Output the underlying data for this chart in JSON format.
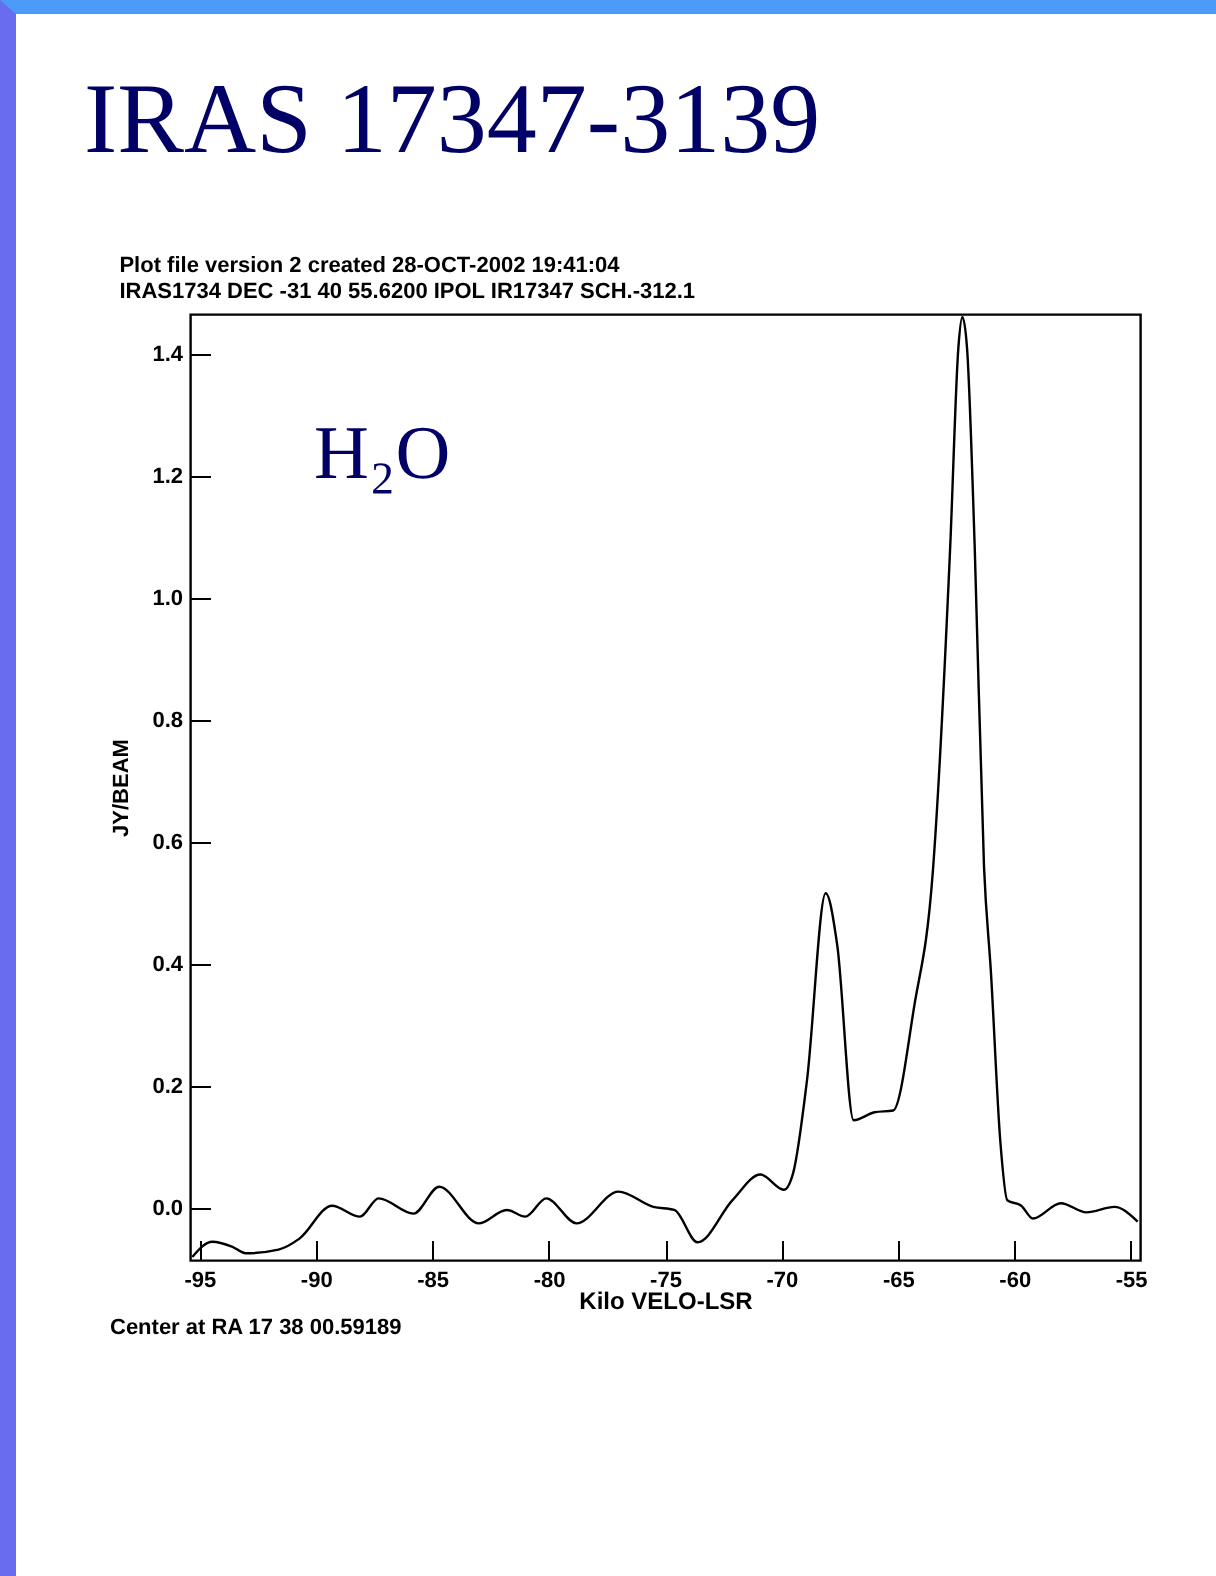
{
  "chart_data": {
    "type": "line",
    "title": "IRAS 17347-3139",
    "subtitle": "Plot file version 2  created 28-OCT-2002 19:41:04\nIRAS1734  DEC -31 40 55.6200  IPOL  IR17347 SCH.-312.1",
    "xlabel": "Kilo VELO-LSR",
    "ylabel": "JY/BEAM",
    "annotations": [
      "H₂O",
      "Center at RA 17 38 00.59189"
    ],
    "x": [
      -95.3,
      -94.44,
      -93.6,
      -93.0,
      -91.6,
      -90.7,
      -89.3,
      -88.1,
      -87.3,
      -85.8,
      -84.7,
      -83.0,
      -81.8,
      -81.0,
      -80.1,
      -78.8,
      -77.0,
      -75.5,
      -74.6,
      -73.6,
      -72.1,
      -70.9,
      -69.9,
      -69.5,
      -68.9,
      -68.1,
      -67.6,
      -66.9,
      -66.0,
      -65.2,
      -64.3,
      -63.5,
      -62.75,
      -62.4,
      -62.23,
      -62.03,
      -61.7,
      -61.3,
      -61.0,
      -60.6,
      -60.3,
      -59.7,
      -59.2,
      -58.0,
      -56.9,
      -55.7,
      -54.7
    ],
    "series": [
      {
        "color": "#000000",
        "values": [
          -0.08,
          -0.055,
          -0.063,
          -0.074,
          -0.068,
          -0.05,
          0.004,
          -0.014,
          0.016,
          -0.009,
          0.035,
          -0.025,
          -0.003,
          -0.014,
          0.016,
          -0.025,
          0.027,
          0.002,
          -0.003,
          -0.056,
          0.013,
          0.055,
          0.03,
          0.057,
          0.21,
          0.516,
          0.43,
          0.144,
          0.157,
          0.16,
          0.33,
          0.55,
          1.085,
          1.41,
          1.46,
          1.41,
          1.085,
          0.56,
          0.385,
          0.11,
          0.013,
          0.004,
          -0.017,
          0.008,
          -0.007,
          0.002,
          -0.022
        ]
      }
    ],
    "xlim": [
      -95.4,
      -54.6
    ],
    "ylim": [
      -0.085,
      1.465
    ],
    "xticks": [
      -95,
      -90,
      -85,
      -80,
      -75,
      -70,
      -65,
      -60,
      -55
    ],
    "yticks": [
      {
        "value": 0,
        "label": "0.0"
      },
      {
        "value": 0.2,
        "label": "0.2"
      },
      {
        "value": 0.4,
        "label": "0.4"
      },
      {
        "value": 0.6,
        "label": "0.6"
      },
      {
        "value": 0.8,
        "label": "0.8"
      },
      {
        "value": 1.0,
        "label": "1.0"
      },
      {
        "value": 1.2,
        "label": "1.2"
      },
      {
        "value": 1.4,
        "label": "1.4"
      }
    ],
    "grid": false,
    "marker": "none",
    "line_style": "solid"
  }
}
